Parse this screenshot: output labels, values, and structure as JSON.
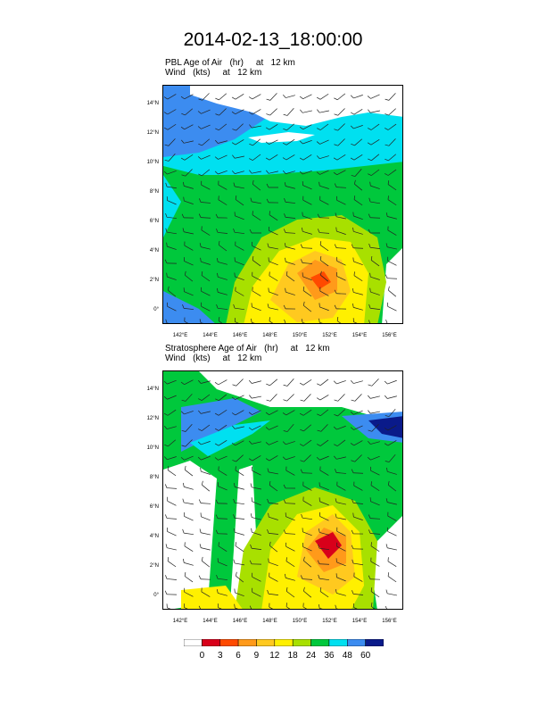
{
  "chart_data": {
    "type": "heatmap",
    "title": "2014-02-13_18:00:00",
    "panels": [
      {
        "title_line1": "PBL Age of Air   (hr)     at   12 km",
        "title_line2": "Wind   (kts)     at   12 km",
        "lat_ticks": [
          "14°N",
          "12°N",
          "10°N",
          "8°N",
          "6°N",
          "4°N",
          "2°N",
          "0°"
        ],
        "lon_ticks": [
          "142°E",
          "144°E",
          "146°E",
          "148°E",
          "150°E",
          "152°E",
          "154°E",
          "156°E"
        ]
      },
      {
        "title_line1": "Stratosphere Age of Air   (hr)     at   12 km",
        "title_line2": "Wind   (kts)     at   12 km",
        "lat_ticks": [
          "14°N",
          "12°N",
          "10°N",
          "8°N",
          "6°N",
          "4°N",
          "2°N",
          "0°"
        ],
        "lon_ticks": [
          "142°E",
          "144°E",
          "146°E",
          "148°E",
          "150°E",
          "152°E",
          "154°E",
          "156°E"
        ]
      }
    ],
    "colorbar": {
      "levels": [
        "0",
        "3",
        "6",
        "9",
        "12",
        "18",
        "24",
        "36",
        "48",
        "60"
      ],
      "colors": [
        "#ffffff",
        "#d8001a",
        "#ff4a00",
        "#ff9a1a",
        "#ffc91f",
        "#fff000",
        "#a8e000",
        "#00c83c",
        "#00e0f0",
        "#3c8cf0",
        "#0a1a8a"
      ]
    }
  }
}
